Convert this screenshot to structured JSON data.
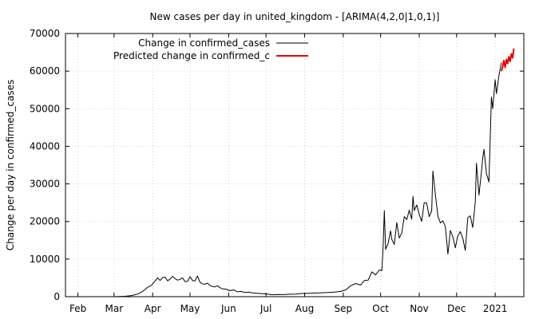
{
  "chart_data": {
    "type": "line",
    "title": "New cases per day in united_kingdom -  [ARIMA(4,2,0|1,0,1)]",
    "xlabel": "",
    "ylabel": "Change per day in confirmed_cases",
    "ylim": [
      0,
      70000
    ],
    "yticks": [
      0,
      10000,
      20000,
      30000,
      40000,
      50000,
      60000,
      70000
    ],
    "xlim": [
      "2020-01-22",
      "2021-01-24"
    ],
    "xticks": [
      {
        "label": "Feb",
        "date": "2020-02-01"
      },
      {
        "label": "Mar",
        "date": "2020-03-01"
      },
      {
        "label": "Apr",
        "date": "2020-04-01"
      },
      {
        "label": "May",
        "date": "2020-05-01"
      },
      {
        "label": "Jun",
        "date": "2020-06-01"
      },
      {
        "label": "Jul",
        "date": "2020-07-01"
      },
      {
        "label": "Aug",
        "date": "2020-08-01"
      },
      {
        "label": "Sep",
        "date": "2020-09-01"
      },
      {
        "label": "Oct",
        "date": "2020-10-01"
      },
      {
        "label": "Nov",
        "date": "2020-11-01"
      },
      {
        "label": "Dec",
        "date": "2020-12-01"
      },
      {
        "label": "2021",
        "date": "2021-01-01"
      }
    ],
    "grid": true,
    "legend_position": "top-left",
    "series": [
      {
        "name": "Change in confirmed_cases",
        "color": "#000000",
        "points": [
          [
            "2020-01-22",
            0
          ],
          [
            "2020-02-20",
            0
          ],
          [
            "2020-03-01",
            0
          ],
          [
            "2020-03-05",
            50
          ],
          [
            "2020-03-10",
            100
          ],
          [
            "2020-03-15",
            300
          ],
          [
            "2020-03-20",
            700
          ],
          [
            "2020-03-24",
            1400
          ],
          [
            "2020-03-28",
            2500
          ],
          [
            "2020-03-31",
            3000
          ],
          [
            "2020-04-03",
            4200
          ],
          [
            "2020-04-05",
            5000
          ],
          [
            "2020-04-07",
            4300
          ],
          [
            "2020-04-09",
            5100
          ],
          [
            "2020-04-11",
            5200
          ],
          [
            "2020-04-13",
            4200
          ],
          [
            "2020-04-15",
            4700
          ],
          [
            "2020-04-17",
            5400
          ],
          [
            "2020-04-19",
            4800
          ],
          [
            "2020-04-21",
            4400
          ],
          [
            "2020-04-23",
            4600
          ],
          [
            "2020-04-25",
            5000
          ],
          [
            "2020-04-27",
            4000
          ],
          [
            "2020-04-29",
            4100
          ],
          [
            "2020-05-01",
            5300
          ],
          [
            "2020-05-03",
            4300
          ],
          [
            "2020-05-05",
            4200
          ],
          [
            "2020-05-07",
            5500
          ],
          [
            "2020-05-09",
            3800
          ],
          [
            "2020-05-11",
            3400
          ],
          [
            "2020-05-13",
            3300
          ],
          [
            "2020-05-15",
            3600
          ],
          [
            "2020-05-17",
            3000
          ],
          [
            "2020-05-19",
            2700
          ],
          [
            "2020-05-21",
            2600
          ],
          [
            "2020-05-23",
            2900
          ],
          [
            "2020-05-25",
            2400
          ],
          [
            "2020-05-27",
            2100
          ],
          [
            "2020-05-30",
            2000
          ],
          [
            "2020-06-02",
            1600
          ],
          [
            "2020-06-05",
            1800
          ],
          [
            "2020-06-08",
            1300
          ],
          [
            "2020-06-11",
            1400
          ],
          [
            "2020-06-14",
            1100
          ],
          [
            "2020-06-17",
            1200
          ],
          [
            "2020-06-20",
            1000
          ],
          [
            "2020-06-24",
            900
          ],
          [
            "2020-06-28",
            800
          ],
          [
            "2020-07-02",
            700
          ],
          [
            "2020-07-06",
            500
          ],
          [
            "2020-07-10",
            600
          ],
          [
            "2020-07-15",
            550
          ],
          [
            "2020-07-20",
            650
          ],
          [
            "2020-07-25",
            700
          ],
          [
            "2020-07-30",
            850
          ],
          [
            "2020-08-05",
            900
          ],
          [
            "2020-08-10",
            950
          ],
          [
            "2020-08-15",
            1050
          ],
          [
            "2020-08-20",
            1100
          ],
          [
            "2020-08-25",
            1200
          ],
          [
            "2020-08-30",
            1400
          ],
          [
            "2020-09-03",
            1800
          ],
          [
            "2020-09-07",
            2900
          ],
          [
            "2020-09-11",
            3500
          ],
          [
            "2020-09-15",
            3100
          ],
          [
            "2020-09-18",
            4300
          ],
          [
            "2020-09-21",
            4400
          ],
          [
            "2020-09-24",
            6600
          ],
          [
            "2020-09-27",
            5800
          ],
          [
            "2020-09-30",
            7100
          ],
          [
            "2020-10-02",
            6900
          ],
          [
            "2020-10-03",
            12800
          ],
          [
            "2020-10-04",
            22900
          ],
          [
            "2020-10-05",
            12600
          ],
          [
            "2020-10-07",
            14100
          ],
          [
            "2020-10-09",
            17500
          ],
          [
            "2020-10-10",
            15200
          ],
          [
            "2020-10-12",
            13900
          ],
          [
            "2020-10-14",
            19700
          ],
          [
            "2020-10-16",
            15600
          ],
          [
            "2020-10-18",
            16900
          ],
          [
            "2020-10-20",
            21300
          ],
          [
            "2020-10-22",
            20500
          ],
          [
            "2020-10-24",
            23000
          ],
          [
            "2020-10-26",
            20600
          ],
          [
            "2020-10-27",
            26700
          ],
          [
            "2020-10-28",
            22900
          ],
          [
            "2020-10-30",
            24400
          ],
          [
            "2020-11-01",
            21900
          ],
          [
            "2020-11-03",
            20000
          ],
          [
            "2020-11-05",
            25000
          ],
          [
            "2020-11-07",
            24900
          ],
          [
            "2020-11-09",
            21300
          ],
          [
            "2020-11-11",
            22800
          ],
          [
            "2020-11-12",
            33400
          ],
          [
            "2020-11-14",
            27000
          ],
          [
            "2020-11-16",
            21400
          ],
          [
            "2020-11-18",
            19600
          ],
          [
            "2020-11-20",
            20200
          ],
          [
            "2020-11-22",
            18700
          ],
          [
            "2020-11-24",
            11300
          ],
          [
            "2020-11-26",
            17600
          ],
          [
            "2020-11-28",
            15900
          ],
          [
            "2020-11-30",
            13000
          ],
          [
            "2020-12-02",
            16200
          ],
          [
            "2020-12-04",
            17300
          ],
          [
            "2020-12-06",
            15500
          ],
          [
            "2020-12-08",
            12300
          ],
          [
            "2020-12-10",
            21000
          ],
          [
            "2020-12-12",
            21500
          ],
          [
            "2020-12-14",
            18400
          ],
          [
            "2020-12-16",
            25200
          ],
          [
            "2020-12-17",
            35500
          ],
          [
            "2020-12-19",
            27000
          ],
          [
            "2020-12-21",
            33400
          ],
          [
            "2020-12-22",
            36800
          ],
          [
            "2020-12-23",
            39200
          ],
          [
            "2020-12-25",
            32700
          ],
          [
            "2020-12-27",
            30500
          ],
          [
            "2020-12-29",
            53100
          ],
          [
            "2020-12-30",
            50000
          ],
          [
            "2021-01-01",
            57700
          ],
          [
            "2021-01-02",
            54000
          ],
          [
            "2021-01-04",
            58800
          ],
          [
            "2021-01-06",
            62300
          ]
        ]
      },
      {
        "name": "Predicted change in confirmed_c",
        "color": "#ee0000",
        "points": [
          [
            "2021-01-06",
            60000
          ],
          [
            "2021-01-07",
            61200
          ],
          [
            "2021-01-08",
            62800
          ],
          [
            "2021-01-09",
            61000
          ],
          [
            "2021-01-10",
            63100
          ],
          [
            "2021-01-11",
            62000
          ],
          [
            "2021-01-12",
            63800
          ],
          [
            "2021-01-13",
            62600
          ],
          [
            "2021-01-14",
            64600
          ],
          [
            "2021-01-15",
            63500
          ],
          [
            "2021-01-16",
            66000
          ]
        ]
      }
    ]
  }
}
